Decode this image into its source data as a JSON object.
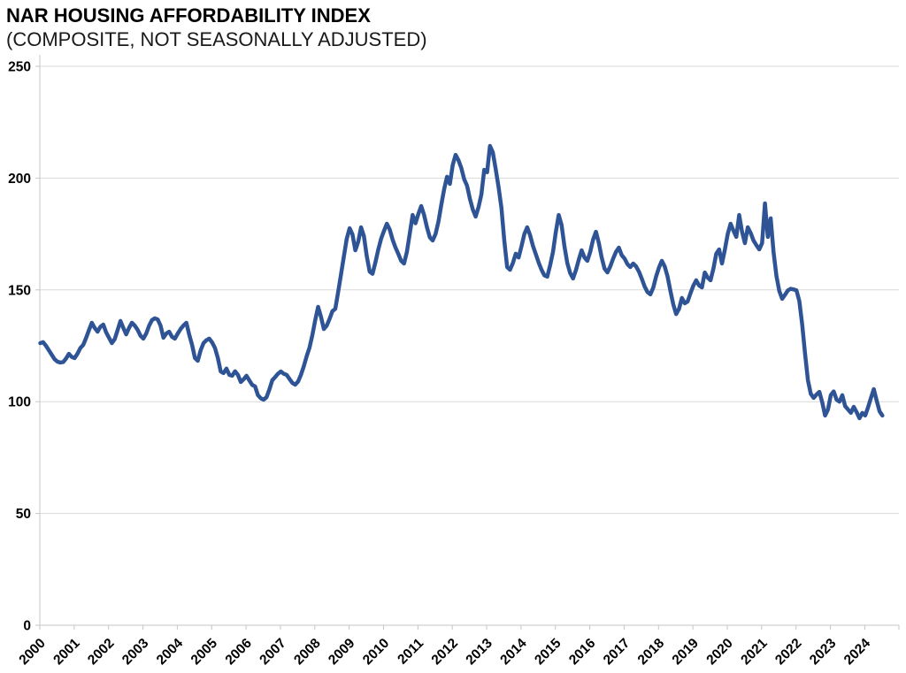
{
  "header": {
    "title": "NAR HOUSING AFFORDABILITY INDEX",
    "subtitle": "(COMPOSITE, NOT SEASONALLY ADJUSTED)"
  },
  "colors": {
    "line": "#2F5496",
    "grid": "#D9D9D9",
    "axis": "#C6C6C6",
    "text": "#000000",
    "background": "#FFFFFF"
  },
  "chart_data": {
    "type": "line",
    "title": "NAR HOUSING AFFORDABILITY INDEX",
    "subtitle": "(COMPOSITE, NOT SEASONALLY ADJUSTED)",
    "x_interval": "monthly",
    "x_start": "2000-01",
    "x_end": "2024-07",
    "x_tick_labels": [
      "2000",
      "2001",
      "2002",
      "2003",
      "2004",
      "2005",
      "2006",
      "2007",
      "2008",
      "2009",
      "2010",
      "2011",
      "2012",
      "2013",
      "2014",
      "2015",
      "2016",
      "2017",
      "2018",
      "2019",
      "2020",
      "2021",
      "2022",
      "2023",
      "2024"
    ],
    "y_ticks": [
      0,
      50,
      100,
      150,
      200,
      250
    ],
    "ylim": [
      0,
      250
    ],
    "grid": "horizontal-only",
    "legend": "none",
    "series": [
      {
        "values": [
          126.2,
          126.6,
          125.0,
          123.0,
          121.0,
          119.0,
          117.9,
          117.5,
          117.7,
          119.3,
          121.4,
          120.0,
          119.5,
          121.5,
          124.0,
          125.4,
          128.5,
          132.0,
          135.3,
          133.0,
          131.3,
          133.5,
          134.5,
          131.0,
          128.6,
          126.2,
          128.0,
          132.0,
          136.1,
          133.0,
          130.1,
          133.0,
          135.3,
          134.0,
          132.1,
          129.5,
          128.2,
          130.5,
          134.0,
          136.5,
          137.3,
          136.8,
          134.0,
          128.6,
          130.5,
          131.3,
          129.0,
          128.2,
          130.5,
          132.5,
          134.1,
          135.3,
          130.0,
          125.4,
          119.5,
          118.3,
          123.0,
          126.2,
          127.5,
          128.2,
          126.5,
          124.0,
          119.5,
          113.5,
          112.8,
          114.8,
          112.0,
          111.6,
          113.6,
          112.0,
          108.8,
          110.0,
          111.6,
          109.5,
          107.5,
          106.8,
          102.9,
          101.5,
          100.9,
          102.0,
          105.5,
          109.6,
          111.0,
          112.5,
          113.5,
          112.5,
          112.0,
          110.2,
          108.4,
          107.6,
          109.0,
          112.0,
          115.8,
          120.3,
          124.2,
          129.8,
          136.5,
          142.4,
          138.0,
          132.5,
          134.0,
          137.0,
          140.5,
          141.5,
          149.1,
          157.0,
          165.0,
          172.9,
          177.6,
          174.8,
          167.7,
          171.5,
          178.0,
          174.0,
          165.0,
          158.2,
          157.2,
          162.3,
          168.0,
          172.9,
          176.4,
          179.6,
          177.0,
          172.5,
          169.0,
          166.1,
          163.0,
          161.8,
          167.0,
          175.2,
          183.5,
          179.8,
          184.0,
          187.5,
          183.5,
          178.0,
          173.5,
          172.1,
          175.0,
          180.5,
          188.0,
          195.0,
          200.6,
          197.4,
          205.9,
          210.4,
          208.0,
          204.5,
          199.5,
          196.6,
          190.7,
          186.0,
          182.8,
          187.0,
          192.7,
          203.7,
          202.6,
          214.4,
          211.5,
          204.0,
          196.0,
          186.7,
          172.0,
          160.2,
          159.0,
          162.0,
          166.2,
          164.5,
          169.5,
          175.0,
          178.0,
          174.5,
          169.7,
          166.0,
          162.2,
          159.0,
          156.5,
          155.9,
          161.0,
          167.0,
          176.0,
          183.5,
          179.0,
          169.5,
          162.0,
          157.5,
          155.1,
          158.8,
          163.5,
          167.7,
          164.5,
          163.0,
          167.0,
          172.5,
          176.0,
          171.0,
          164.5,
          159.5,
          157.8,
          160.5,
          164.0,
          167.0,
          168.9,
          165.5,
          164.0,
          161.5,
          160.2,
          161.8,
          160.5,
          158.2,
          155.0,
          151.5,
          149.0,
          148.0,
          151.0,
          156.0,
          160.0,
          163.0,
          160.5,
          156.0,
          149.5,
          143.5,
          139.2,
          141.5,
          146.4,
          144.0,
          144.8,
          148.5,
          151.9,
          154.3,
          152.0,
          151.1,
          157.8,
          155.5,
          154.3,
          159.5,
          166.2,
          168.1,
          161.8,
          168.0,
          175.0,
          179.6,
          176.5,
          173.7,
          183.5,
          176.0,
          170.9,
          178.0,
          175.5,
          172.1,
          170.0,
          168.1,
          170.9,
          188.7,
          173.7,
          182.0,
          166.9,
          156.3,
          149.5,
          146.0,
          147.8,
          149.8,
          150.5,
          150.2,
          149.8,
          145.0,
          134.5,
          121.4,
          109.6,
          103.5,
          101.7,
          103.2,
          104.4,
          99.7,
          93.8,
          96.5,
          103.0,
          104.6,
          100.9,
          100.0,
          102.9,
          98.0,
          96.5,
          95.0,
          97.7,
          95.3,
          92.6,
          95.0,
          93.8,
          97.5,
          101.7,
          105.6,
          100.5,
          95.7,
          93.8
        ]
      }
    ]
  }
}
